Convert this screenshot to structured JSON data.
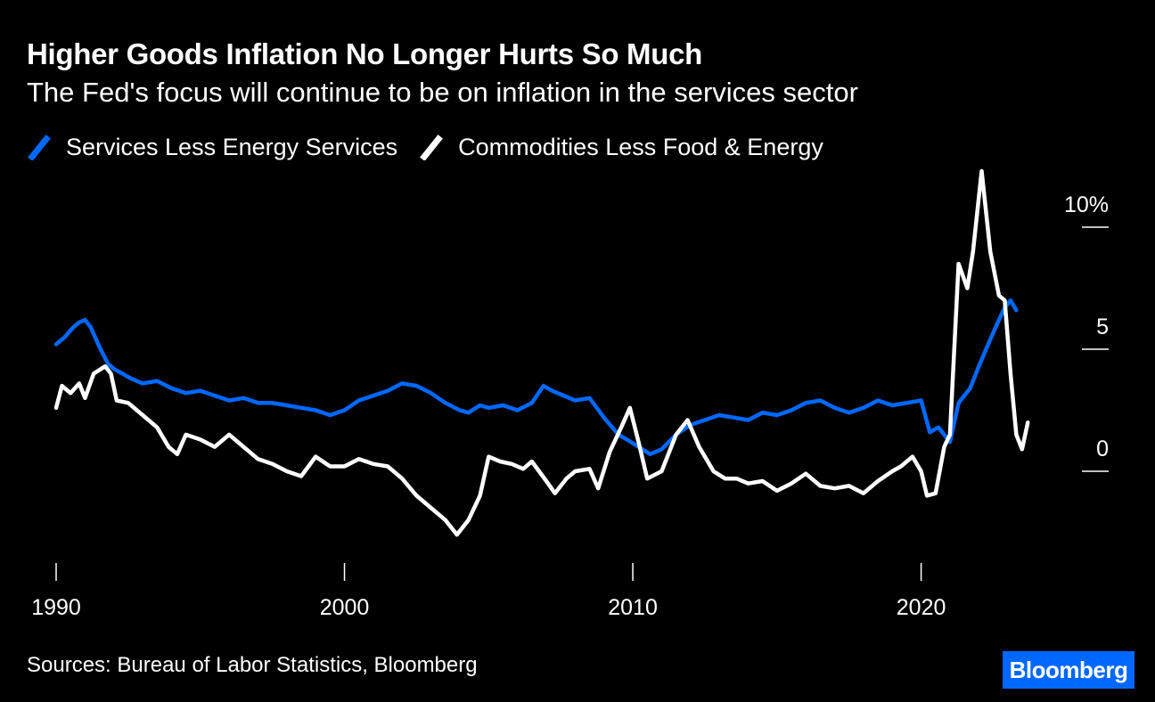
{
  "title": "Higher Goods Inflation No Longer Hurts So Much",
  "subtitle": "The Fed's focus will continue to be on inflation in the services sector",
  "source": "Sources: Bureau of Labor Statistics, Bloomberg",
  "logo": "Bloomberg",
  "chart_data": {
    "type": "line",
    "title": "Higher Goods Inflation No Longer Hurts So Much",
    "subtitle": "The Fed's focus will continue to be on inflation in the services sector",
    "xlabel": "",
    "ylabel": "",
    "x_ticks": [
      "1990",
      "2000",
      "2010",
      "2020"
    ],
    "x_tick_values": [
      1990,
      2000,
      2010,
      2020
    ],
    "y_ticks": [
      0,
      5,
      10
    ],
    "y_tick_labels": [
      "0",
      "5",
      "10%"
    ],
    "xlim": [
      1990,
      2024
    ],
    "ylim": [
      -3.7,
      12
    ],
    "grid": false,
    "legend_position": "top-left",
    "colors": {
      "services": "#0068ff",
      "commodities": "#ffffff",
      "background": "#000000"
    },
    "series": [
      {
        "name": "Services Less Energy Services",
        "color": "#0068ff",
        "points": [
          [
            1990.0,
            5.2
          ],
          [
            1990.3,
            5.5
          ],
          [
            1990.6,
            5.9
          ],
          [
            1990.8,
            6.1
          ],
          [
            1991.0,
            6.2
          ],
          [
            1991.2,
            5.9
          ],
          [
            1991.5,
            5.1
          ],
          [
            1991.8,
            4.4
          ],
          [
            1992.0,
            4.2
          ],
          [
            1992.3,
            4.0
          ],
          [
            1992.6,
            3.8
          ],
          [
            1993.0,
            3.6
          ],
          [
            1993.5,
            3.7
          ],
          [
            1994.0,
            3.4
          ],
          [
            1994.5,
            3.2
          ],
          [
            1995.0,
            3.3
          ],
          [
            1995.5,
            3.1
          ],
          [
            1996.0,
            2.9
          ],
          [
            1996.5,
            3.0
          ],
          [
            1997.0,
            2.8
          ],
          [
            1997.5,
            2.8
          ],
          [
            1998.0,
            2.7
          ],
          [
            1998.5,
            2.6
          ],
          [
            1999.0,
            2.5
          ],
          [
            1999.5,
            2.3
          ],
          [
            2000.0,
            2.5
          ],
          [
            2000.5,
            2.9
          ],
          [
            2001.0,
            3.1
          ],
          [
            2001.5,
            3.3
          ],
          [
            2002.0,
            3.6
          ],
          [
            2002.5,
            3.5
          ],
          [
            2003.0,
            3.2
          ],
          [
            2003.5,
            2.8
          ],
          [
            2004.0,
            2.5
          ],
          [
            2004.3,
            2.4
          ],
          [
            2004.7,
            2.7
          ],
          [
            2005.0,
            2.6
          ],
          [
            2005.5,
            2.7
          ],
          [
            2006.0,
            2.5
          ],
          [
            2006.5,
            2.8
          ],
          [
            2006.9,
            3.5
          ],
          [
            2007.2,
            3.3
          ],
          [
            2007.6,
            3.1
          ],
          [
            2008.0,
            2.9
          ],
          [
            2008.5,
            3.0
          ],
          [
            2009.0,
            2.2
          ],
          [
            2009.5,
            1.5
          ],
          [
            2009.8,
            1.3
          ],
          [
            2010.2,
            1.0
          ],
          [
            2010.6,
            0.7
          ],
          [
            2011.0,
            0.9
          ],
          [
            2011.5,
            1.5
          ],
          [
            2012.0,
            1.9
          ],
          [
            2012.5,
            2.1
          ],
          [
            2013.0,
            2.3
          ],
          [
            2013.5,
            2.2
          ],
          [
            2014.0,
            2.1
          ],
          [
            2014.5,
            2.4
          ],
          [
            2015.0,
            2.3
          ],
          [
            2015.5,
            2.5
          ],
          [
            2016.0,
            2.8
          ],
          [
            2016.5,
            2.9
          ],
          [
            2017.0,
            2.6
          ],
          [
            2017.5,
            2.4
          ],
          [
            2018.0,
            2.6
          ],
          [
            2018.5,
            2.9
          ],
          [
            2019.0,
            2.7
          ],
          [
            2019.5,
            2.8
          ],
          [
            2020.0,
            2.9
          ],
          [
            2020.3,
            1.6
          ],
          [
            2020.6,
            1.8
          ],
          [
            2021.0,
            1.2
          ],
          [
            2021.3,
            2.8
          ],
          [
            2021.7,
            3.4
          ],
          [
            2022.0,
            4.3
          ],
          [
            2022.4,
            5.4
          ],
          [
            2022.7,
            6.2
          ],
          [
            2022.9,
            6.7
          ],
          [
            2023.1,
            7.0
          ],
          [
            2023.3,
            6.6
          ]
        ]
      },
      {
        "name": "Commodities Less Food & Energy",
        "color": "#ffffff",
        "points": [
          [
            1990.0,
            2.6
          ],
          [
            1990.2,
            3.5
          ],
          [
            1990.5,
            3.2
          ],
          [
            1990.8,
            3.6
          ],
          [
            1991.0,
            3.0
          ],
          [
            1991.3,
            4.0
          ],
          [
            1991.7,
            4.3
          ],
          [
            1991.9,
            4.0
          ],
          [
            1992.1,
            2.9
          ],
          [
            1992.5,
            2.8
          ],
          [
            1993.0,
            2.3
          ],
          [
            1993.5,
            1.8
          ],
          [
            1993.9,
            1.0
          ],
          [
            1994.2,
            0.7
          ],
          [
            1994.5,
            1.5
          ],
          [
            1995.0,
            1.3
          ],
          [
            1995.5,
            1.0
          ],
          [
            1996.0,
            1.5
          ],
          [
            1996.5,
            1.0
          ],
          [
            1997.0,
            0.5
          ],
          [
            1997.5,
            0.3
          ],
          [
            1998.0,
            0.0
          ],
          [
            1998.5,
            -0.2
          ],
          [
            1999.0,
            0.6
          ],
          [
            1999.5,
            0.2
          ],
          [
            2000.0,
            0.2
          ],
          [
            2000.5,
            0.5
          ],
          [
            2001.0,
            0.3
          ],
          [
            2001.5,
            0.2
          ],
          [
            2002.0,
            -0.3
          ],
          [
            2002.5,
            -1.0
          ],
          [
            2003.0,
            -1.5
          ],
          [
            2003.5,
            -2.0
          ],
          [
            2003.9,
            -2.6
          ],
          [
            2004.3,
            -2.0
          ],
          [
            2004.7,
            -1.0
          ],
          [
            2005.0,
            0.6
          ],
          [
            2005.4,
            0.4
          ],
          [
            2005.8,
            0.3
          ],
          [
            2006.2,
            0.1
          ],
          [
            2006.5,
            0.4
          ],
          [
            2007.0,
            -0.4
          ],
          [
            2007.3,
            -0.9
          ],
          [
            2007.7,
            -0.3
          ],
          [
            2008.0,
            0.0
          ],
          [
            2008.5,
            0.1
          ],
          [
            2008.8,
            -0.7
          ],
          [
            2009.2,
            0.8
          ],
          [
            2009.6,
            1.8
          ],
          [
            2009.9,
            2.6
          ],
          [
            2010.2,
            1.2
          ],
          [
            2010.5,
            -0.3
          ],
          [
            2011.0,
            0.0
          ],
          [
            2011.5,
            1.5
          ],
          [
            2011.9,
            2.1
          ],
          [
            2012.3,
            1.0
          ],
          [
            2012.8,
            0.0
          ],
          [
            2013.2,
            -0.3
          ],
          [
            2013.6,
            -0.3
          ],
          [
            2014.0,
            -0.5
          ],
          [
            2014.5,
            -0.4
          ],
          [
            2015.0,
            -0.8
          ],
          [
            2015.5,
            -0.5
          ],
          [
            2016.0,
            -0.1
          ],
          [
            2016.5,
            -0.6
          ],
          [
            2017.0,
            -0.7
          ],
          [
            2017.5,
            -0.6
          ],
          [
            2018.0,
            -0.9
          ],
          [
            2018.5,
            -0.4
          ],
          [
            2019.0,
            0.0
          ],
          [
            2019.3,
            0.2
          ],
          [
            2019.7,
            0.6
          ],
          [
            2020.0,
            0.0
          ],
          [
            2020.2,
            -1.0
          ],
          [
            2020.5,
            -0.9
          ],
          [
            2020.8,
            1.0
          ],
          [
            2021.0,
            1.5
          ],
          [
            2021.3,
            8.5
          ],
          [
            2021.6,
            7.5
          ],
          [
            2021.8,
            9.0
          ],
          [
            2022.1,
            12.3
          ],
          [
            2022.4,
            9.0
          ],
          [
            2022.7,
            7.2
          ],
          [
            2022.9,
            7.0
          ],
          [
            2023.1,
            4.0
          ],
          [
            2023.3,
            1.5
          ],
          [
            2023.5,
            0.9
          ],
          [
            2023.7,
            2.0
          ]
        ]
      }
    ]
  }
}
